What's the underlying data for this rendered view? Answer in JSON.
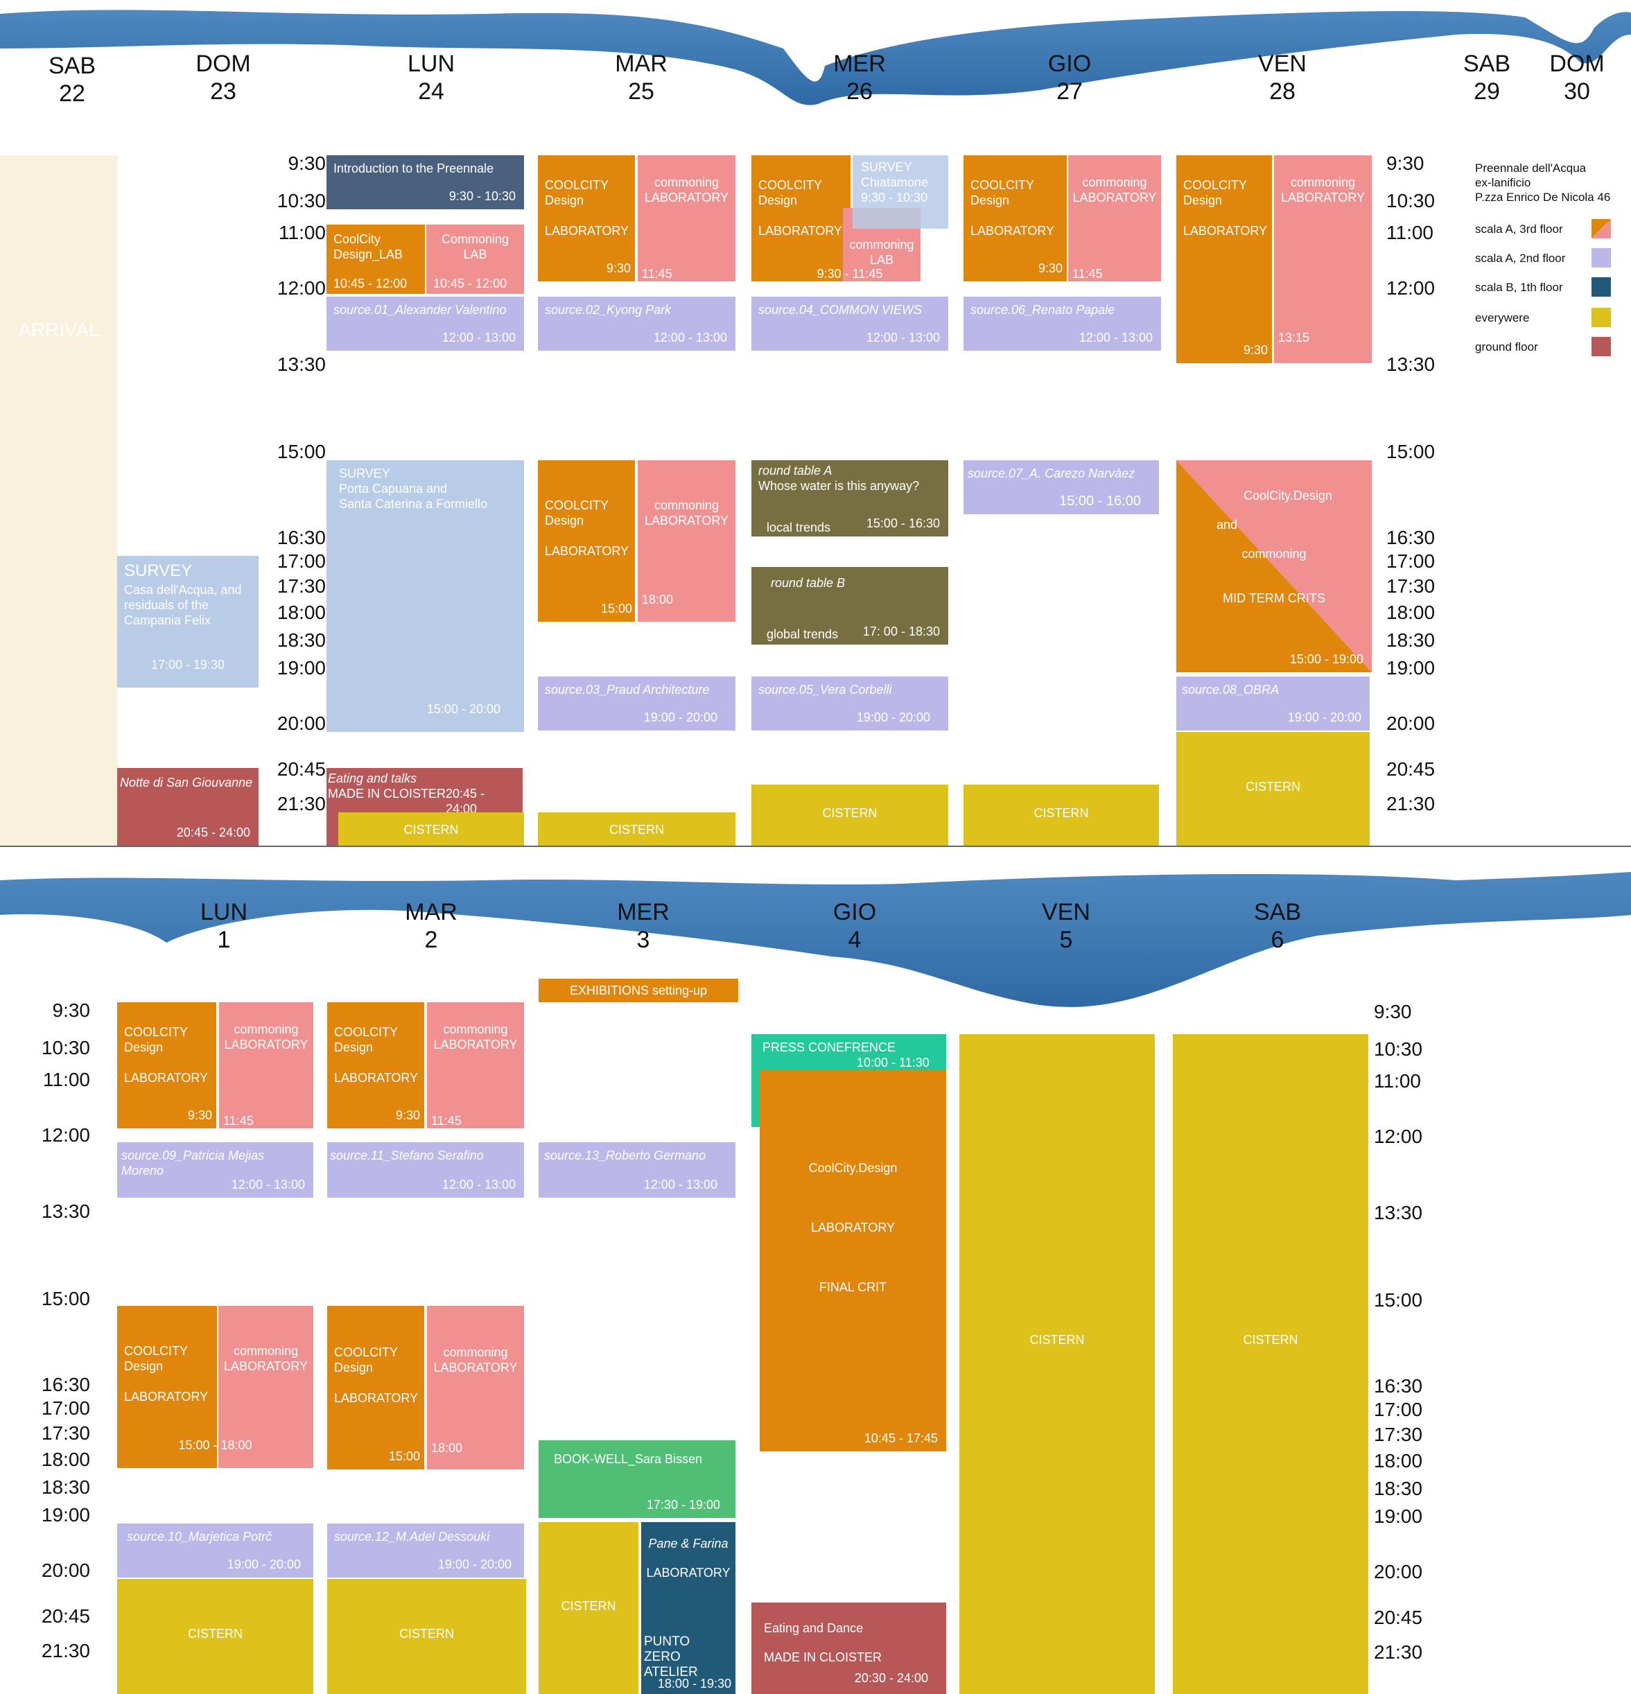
{
  "week1": {
    "days": [
      {
        "dow": "SAB",
        "num": "22"
      },
      {
        "dow": "DOM",
        "num": "23"
      },
      {
        "dow": "LUN",
        "num": "24"
      },
      {
        "dow": "MAR",
        "num": "25"
      },
      {
        "dow": "MER",
        "num": "26"
      },
      {
        "dow": "GIO",
        "num": "27"
      },
      {
        "dow": "VEN",
        "num": "28"
      },
      {
        "dow": "SAB",
        "num": "29"
      },
      {
        "dow": "DOM",
        "num": "30"
      }
    ],
    "times": [
      "9:30",
      "10:30",
      "11:00",
      "12:00",
      "13:30",
      "15:00",
      "16:30",
      "17:00",
      "17:30",
      "18:00",
      "18:30",
      "19:00",
      "20:00",
      "20:45",
      "21:30"
    ],
    "arrival": "ARRIVAL",
    "sun": {
      "survey_title": "SURVEY",
      "survey_desc": "Casa dell'Acqua, and\nresiduals of the\nCampania Felix",
      "survey_time": "17:00 - 19:30",
      "notte_title": "Notte di San Giouvanne",
      "notte_time": "20:45 - 24:00"
    },
    "mon": {
      "intro_title": "Introduction to the Preennale",
      "intro_time": "9:30 - 10:30",
      "cool_lab": "CoolCity\nDesign_LAB",
      "cool_lab_time": "10:45 - 12:00",
      "comm_lab": "Commoning\nLAB",
      "comm_lab_time": "10:45 - 12:00",
      "source_title": "source.01_Alexander Valentino",
      "source_time": "12:00 - 13:00",
      "survey_title": "SURVEY\nPorta Capuana and\nSanta Caterina a Formiello",
      "survey_time": "15:00 - 20:00",
      "eating_title": "Eating and talks",
      "eating_sub": "MADE IN CLOISTER",
      "eating_time": "20:45 - 24:00",
      "cistern": "CISTERN"
    },
    "tue": {
      "coolcity": "COOLCITY\nDesign\n\nLABORATORY",
      "cool_time": "9:30",
      "commoning": "commoning\nLABORATORY",
      "comm_time": "11:45",
      "source_title": "source.02_Kyong Park",
      "source_time": "12:00 - 13:00",
      "pm_cool_time": "15:00",
      "pm_comm_time": "18:00",
      "source2_title": "source.03_Praud Architecture",
      "source2_time": "19:00 - 20:00",
      "cistern": "CISTERN"
    },
    "wed": {
      "coolcity": "COOLCITY\nDesign\n\nLABORATORY",
      "survey": "SURVEY\nChiatamone\n9:30 - 10:30",
      "comm_lab": "commoning\nLAB",
      "time_row": "9:30 - 11:45",
      "source_title": "source.04_COMMON VIEWS",
      "source_time": "12:00 - 13:00",
      "rtA_title": "round table A",
      "rtA_sub": "Whose water is this anyway?",
      "rtA_label": "local trends",
      "rtA_time": "15:00 - 16:30",
      "rtB_title": "round table B",
      "rtB_label": "global trends",
      "rtB_time": "17: 00 - 18:30",
      "source2_title": "source.05_Vera Corbelli",
      "source2_time": "19:00 - 20:00",
      "cistern": "CISTERN"
    },
    "thu": {
      "coolcity": "COOLCITY\nDesign\n\nLABORATORY",
      "cool_time": "9:30",
      "commoning": "commoning\nLABORATORY",
      "comm_time": "11:45",
      "source_title": "source.06_Renato Papale",
      "source_time": "12:00 - 13:00",
      "source2_title": "source.07_A. Carezo Narvàez",
      "source2_time": "15:00 - 16:00",
      "cistern": "CISTERN"
    },
    "fri": {
      "coolcity": "COOLCITY\nDesign\n\nLABORATORY",
      "cool_time": "9:30",
      "commoning": "commoning\nLABORATORY",
      "comm_time": "13:15",
      "mid_l1": "CoolCity.Design",
      "mid_l2": "and",
      "mid_l3": "commoning",
      "mid_l4": "MID TERM CRITS",
      "mid_time": "15:00 - 19:00",
      "source_title": "source.08_OBRA",
      "source_time": "19:00 - 20:00",
      "cistern": "CISTERN"
    }
  },
  "legend": {
    "venue_l1": "Preennale dell'Acqua",
    "venue_l2": "ex-lanificio",
    "venue_l3": "P.zza Enrico De Nicola 46",
    "items": [
      "scala A, 3rd floor",
      "scala A, 2nd floor",
      "scala B, 1th floor",
      "everywere",
      "ground floor"
    ]
  },
  "week2": {
    "days": [
      {
        "dow": "LUN",
        "num": "1"
      },
      {
        "dow": "MAR",
        "num": "2"
      },
      {
        "dow": "MER",
        "num": "3"
      },
      {
        "dow": "GIO",
        "num": "4"
      },
      {
        "dow": "VEN",
        "num": "5"
      },
      {
        "dow": "SAB",
        "num": "6"
      }
    ],
    "times": [
      "9:30",
      "10:30",
      "11:00",
      "12:00",
      "13:30",
      "15:00",
      "16:30",
      "17:00",
      "17:30",
      "18:00",
      "18:30",
      "19:00",
      "20:00",
      "20:45",
      "21:30"
    ],
    "mon": {
      "coolcity": "COOLCITY\nDesign\n\nLABORATORY",
      "cool_time": "9:30",
      "commoning": "commoning\nLABORATORY",
      "comm_time": "11:45",
      "source_title": "source.09_Patricia Mejias Moreno",
      "source_time": "12:00 - 13:00",
      "pm_coolcity": "COOLCITY\nDesign\n\nLABORATORY",
      "pm_time": "15:00 - 18:00",
      "source2_title": "source.10_Marjetica Potrč",
      "source2_time": "19:00 - 20:00",
      "cistern": "CISTERN"
    },
    "tue": {
      "coolcity": "COOLCITY\nDesign\n\nLABORATORY",
      "cool_time": "9:30",
      "commoning": "commoning\nLABORATORY",
      "comm_time": "11:45",
      "source_title": "source.11_Stefano Serafino",
      "source_time": "12:00 - 13:00",
      "pm_cool_time": "15:00",
      "pm_comm_time": "18:00",
      "source2_title": "source.12_M.Adel Dessouki",
      "source2_time": "19:00 - 20:00",
      "cistern": "CISTERN"
    },
    "wed": {
      "exhibitions": "EXHIBITIONS setting-up",
      "source_title": "source.13_Roberto Germano",
      "source_time": "12:00 - 13:00",
      "book_title": "BOOK-WELL_Sara Bissen",
      "book_time": "17:30 - 19:00",
      "cistern": "CISTERN",
      "pane_title": "Pane & Farina",
      "pane_lab": "LABORATORY",
      "pane_place": "PUNTO ZERO\nATELIER",
      "pane_time": "18:00 - 19:30"
    },
    "thu": {
      "press_title": "PRESS CONEFRENCE",
      "press_time": "10:00 - 11:30",
      "final_l1": "CoolCity.Design",
      "final_l2": "LABORATORY",
      "final_l3": "FINAL CRIT",
      "final_time": "10:45 - 17:45",
      "dance_title": "Eating and Dance",
      "dance_sub": "MADE IN CLOISTER",
      "dance_time": "20:30 - 24:00"
    },
    "fri": {
      "cistern": "CISTERN"
    },
    "sat": {
      "cistern": "CISTERN"
    }
  },
  "colors": {
    "coolcity": "#e0860a",
    "commoning": "#f09090",
    "source": "#bbb8e9",
    "cistern": "#dfc11c",
    "ground": "#b75757",
    "scalaB": "#205a78",
    "survey": "#b8cbe7",
    "roundtable": "#776f42",
    "river": "#3f79b3"
  }
}
